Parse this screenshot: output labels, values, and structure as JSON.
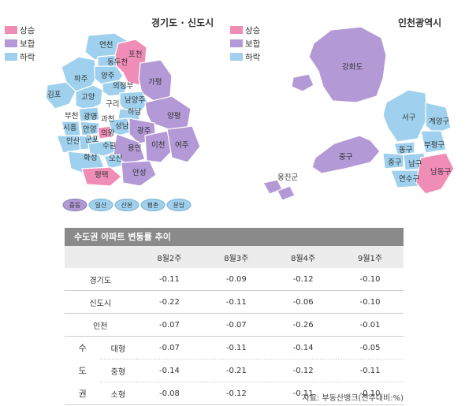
{
  "map_left": {
    "title": "경기도 · 신도시",
    "legend": [
      {
        "label": "상승",
        "color": "#f08db6"
      },
      {
        "label": "보합",
        "color": "#b39ad6"
      },
      {
        "label": "하락",
        "color": "#9fd1ee"
      }
    ],
    "region_labels": [
      "연천",
      "포천",
      "동두천",
      "파주",
      "양주",
      "의정부",
      "가평",
      "김포",
      "고양",
      "남양주",
      "구리",
      "하남",
      "양평",
      "부천",
      "광명",
      "과천",
      "성남",
      "시흥",
      "안양",
      "의왕",
      "광주",
      "안산",
      "군포",
      "수원",
      "용인",
      "이천",
      "여주",
      "화성",
      "오산",
      "평택",
      "안성"
    ],
    "new_towns": [
      "중동",
      "일산",
      "산본",
      "평촌",
      "분당"
    ]
  },
  "map_right": {
    "title": "인천광역시",
    "legend": [
      {
        "label": "상승",
        "color": "#f08db6"
      },
      {
        "label": "보합",
        "color": "#b39ad6"
      },
      {
        "label": "하락",
        "color": "#9fd1ee"
      }
    ],
    "region_labels": [
      "강화도",
      "서구",
      "계양구",
      "부평구",
      "동구",
      "중구",
      "중구",
      "남구",
      "옹진군",
      "연수구",
      "남동구"
    ]
  },
  "table": {
    "title": "수도권 아파트 변동률 추이",
    "columns": [
      "8월2주",
      "8월3주",
      "8월4주",
      "9월1주"
    ],
    "rows": [
      {
        "label": "경기도",
        "values": [
          "-0.11",
          "-0.09",
          "-0.12",
          "-0.10"
        ]
      },
      {
        "label": "신도시",
        "values": [
          "-0.22",
          "-0.11",
          "-0.06",
          "-0.10"
        ]
      },
      {
        "label": "인천",
        "values": [
          "-0.07",
          "-0.07",
          "-0.26",
          "-0.01"
        ]
      }
    ],
    "group": {
      "chars": [
        "수",
        "도",
        "권"
      ],
      "rows": [
        {
          "label": "대형",
          "values": [
            "-0.07",
            "-0.11",
            "-0.14",
            "-0.05"
          ]
        },
        {
          "label": "중형",
          "values": [
            "-0.14",
            "-0.21",
            "-0.12",
            "-0.11"
          ]
        },
        {
          "label": "소형",
          "values": [
            "-0.08",
            "-0.12",
            "-0.11",
            "-0.10"
          ]
        }
      ]
    }
  },
  "source": "자료: 부동산뱅크(전주대비:%)"
}
